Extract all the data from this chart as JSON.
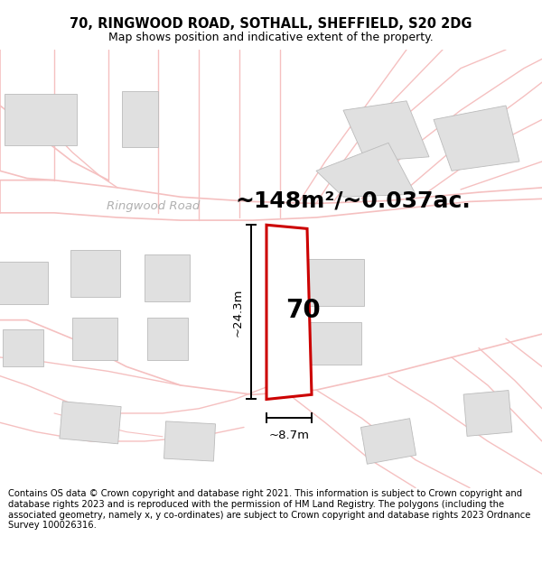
{
  "title_line1": "70, RINGWOOD ROAD, SOTHALL, SHEFFIELD, S20 2DG",
  "title_line2": "Map shows position and indicative extent of the property.",
  "area_text": "~148m²/~0.037ac.",
  "property_number": "70",
  "dim_height": "~24.3m",
  "dim_width": "~8.7m",
  "street_label": "Ringwood Road",
  "footer_text": "Contains OS data © Crown copyright and database right 2021. This information is subject to Crown copyright and database rights 2023 and is reproduced with the permission of HM Land Registry. The polygons (including the associated geometry, namely x, y co-ordinates) are subject to Crown copyright and database rights 2023 Ordnance Survey 100026316.",
  "map_bg": "#ffffff",
  "road_color": "#f5c0c0",
  "building_fill": "#e0e0e0",
  "building_edge": "#bbbbbb",
  "property_outline_color": "#cc0000",
  "dim_line_color": "#000000",
  "text_color": "#000000",
  "street_text_color": "#b0b0b0",
  "title_fontsize": 10.5,
  "subtitle_fontsize": 9,
  "area_fontsize": 18,
  "footer_fontsize": 7.2,
  "prop_number_fontsize": 20
}
